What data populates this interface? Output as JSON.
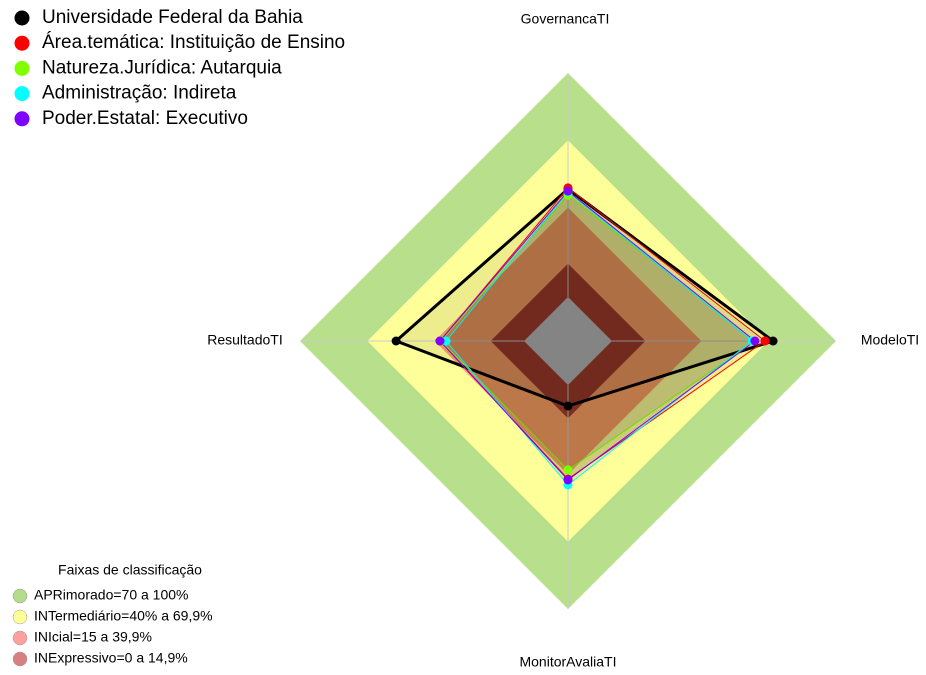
{
  "chart_data": {
    "type": "radar",
    "axes": [
      "GovernancaTI",
      "ModeloTI",
      "MonitorAvaliaTI",
      "ResultadoTI"
    ],
    "rlim": [
      0,
      100
    ],
    "series": [
      {
        "name": "Universidade Federal da Bahia",
        "color": "#000000",
        "values": [
          48.2,
          71.9,
          9.4,
          57.1
        ]
      },
      {
        "name": "Área.temática: Instituição de Ensino",
        "color": "#ff0000",
        "values": [
          48.7,
          68.3,
          42.0,
          37.5
        ]
      },
      {
        "name": "Natureza.Jurídica: Autarquia",
        "color": "#80ff00",
        "values": [
          45.5,
          63.8,
          37.9,
          37.1
        ]
      },
      {
        "name": "Administração: Indireta",
        "color": "#00ffff",
        "values": [
          46.9,
          62.5,
          44.6,
          34.8
        ]
      },
      {
        "name": "Poder.Estatal: Executivo",
        "color": "#8000ff",
        "values": [
          47.3,
          63.8,
          42.4,
          37.5
        ]
      }
    ],
    "bands_title": "Faixas de classificação",
    "bands": [
      {
        "label": "APRimorado=70 a 100%",
        "range": [
          70,
          100
        ],
        "color": "#b5dc8a",
        "fill": "#b8e08c"
      },
      {
        "label": "INTermediário=40% a 69,9%",
        "range": [
          40,
          69.9
        ],
        "color": "#ffff99",
        "fill": "#ffff99"
      },
      {
        "label": "INIcial=15 a 39,9%",
        "range": [
          15,
          39.9
        ],
        "color": "#ffa0a0",
        "fill": "#ffa366"
      },
      {
        "label": "INExpressivo=0 a 14,9%",
        "range": [
          0,
          14.9
        ],
        "color": "#d88080",
        "fill": "#a8402e"
      }
    ]
  }
}
